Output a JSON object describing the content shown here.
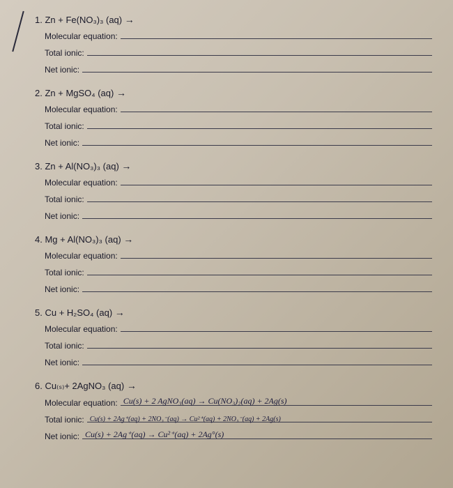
{
  "page": {
    "background_gradient": [
      "#d4ccc0",
      "#c8bfb0",
      "#b0a590"
    ],
    "text_color": "#1a1a2a",
    "line_color": "#3a3a4a",
    "handwriting_color": "#1a1a3a",
    "font_size_header": 13,
    "font_size_label": 12,
    "font_size_handwriting": 12
  },
  "problems": [
    {
      "num": "1.",
      "equation": "Zn  +  Fe(NO₃)₃ (aq)",
      "lines": [
        {
          "label": "Molecular equation:",
          "answer": ""
        },
        {
          "label": "Total ionic:",
          "answer": ""
        },
        {
          "label": "Net ionic:",
          "answer": ""
        }
      ]
    },
    {
      "num": "2.",
      "equation": "Zn  +  MgSO₄ (aq)",
      "lines": [
        {
          "label": "Molecular equation:",
          "answer": ""
        },
        {
          "label": "Total ionic:",
          "answer": ""
        },
        {
          "label": "Net ionic:",
          "answer": ""
        }
      ]
    },
    {
      "num": "3.",
      "equation": "Zn  +  Al(NO₃)₃ (aq)",
      "lines": [
        {
          "label": "Molecular equation:",
          "answer": ""
        },
        {
          "label": "Total ionic:",
          "answer": ""
        },
        {
          "label": "Net ionic:",
          "answer": ""
        }
      ]
    },
    {
      "num": "4.",
      "equation": "Mg  +  Al(NO₃)₃ (aq)",
      "lines": [
        {
          "label": "Molecular equation:",
          "answer": ""
        },
        {
          "label": "Total ionic:",
          "answer": ""
        },
        {
          "label": "Net ionic:",
          "answer": ""
        }
      ]
    },
    {
      "num": "5.",
      "equation": "Cu  +  H₂SO₄ (aq)",
      "lines": [
        {
          "label": "Molecular equation:",
          "answer": ""
        },
        {
          "label": "Total ionic:",
          "answer": ""
        },
        {
          "label": "Net ionic:",
          "answer": ""
        }
      ]
    },
    {
      "num": "6.",
      "equation": "Cu₍ₛ₎+ 2AgNO₃ (aq)",
      "lines": [
        {
          "label": "Molecular equation:",
          "answer": "Cu(s) + 2 AgNO₃(aq) → Cu(NO₃)₂(aq) + 2Ag(s)"
        },
        {
          "label": "Total ionic:",
          "answer": "Cu(s) + 2Ag⁺(aq) + 2NO₃⁻(aq) → Cu²⁺(aq) + 2NO₃⁻(aq) + 2Ag(s)"
        },
        {
          "label": "Net ionic:",
          "answer": "Cu(s) + 2Ag⁺(aq) → Cu²⁺(aq) + 2Ag°(s)"
        }
      ]
    }
  ]
}
